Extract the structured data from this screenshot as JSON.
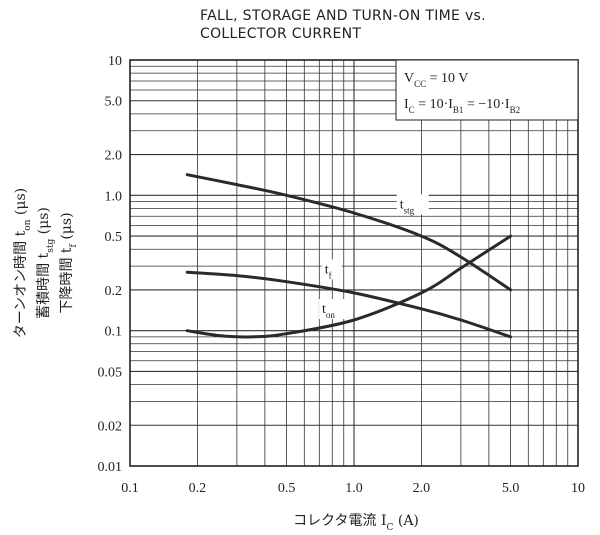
{
  "chart_data": {
    "type": "line",
    "title_lines": [
      "FALL, STORAGE AND TURN-ON TIME vs.",
      "COLLECTOR CURRENT"
    ],
    "xscale": "log",
    "yscale": "log",
    "xlim": [
      0.1,
      10
    ],
    "ylim": [
      0.01,
      10
    ],
    "grid": true,
    "x_ticks": [
      {
        "value": 0.1,
        "label": "0.1"
      },
      {
        "value": 0.2,
        "label": "0.2"
      },
      {
        "value": 0.5,
        "label": "0.5"
      },
      {
        "value": 1,
        "label": "1.0"
      },
      {
        "value": 2,
        "label": "2.0"
      },
      {
        "value": 5,
        "label": "5.0"
      },
      {
        "value": 10,
        "label": "10"
      }
    ],
    "y_ticks": [
      {
        "value": 10,
        "label": "10"
      },
      {
        "value": 5,
        "label": "5.0"
      },
      {
        "value": 2,
        "label": "2.0"
      },
      {
        "value": 1,
        "label": "1.0"
      },
      {
        "value": 0.5,
        "label": "0.5"
      },
      {
        "value": 0.2,
        "label": "0.2"
      },
      {
        "value": 0.1,
        "label": "0.1"
      },
      {
        "value": 0.05,
        "label": "0.05"
      },
      {
        "value": 0.02,
        "label": "0.02"
      },
      {
        "value": 0.01,
        "label": "0.01"
      }
    ],
    "xlabel": {
      "text": "コレクタ電流",
      "symbol": "I",
      "sub": "C",
      "unit": "(A)"
    },
    "ylabel": [
      {
        "jp": "ターンオン時間",
        "symbol": "t",
        "sub": "on",
        "unit": "(μs)"
      },
      {
        "jp": "蓄積時間",
        "symbol": "t",
        "sub": "stg",
        "unit": "(μs)"
      },
      {
        "jp": "下降時間",
        "symbol": "t",
        "sub": "f",
        "unit": "(μs)"
      }
    ],
    "legend": {
      "position": "top-right",
      "lines": [
        {
          "parts": [
            {
              "t": "V"
            },
            {
              "t": "CC",
              "sub": true
            },
            {
              "t": " = 10 V"
            }
          ]
        },
        {
          "parts": [
            {
              "t": "I"
            },
            {
              "t": "C",
              "sub": true
            },
            {
              "t": " = 10·I"
            },
            {
              "t": "B1",
              "sub": true
            },
            {
              "t": " = −10·I"
            },
            {
              "t": "B2",
              "sub": true
            }
          ]
        }
      ]
    },
    "series": [
      {
        "name": "t_stg",
        "label_main": "t",
        "label_sub": "stg",
        "label_at": [
          1.6,
          0.8
        ],
        "points": [
          [
            0.18,
            1.42
          ],
          [
            0.3,
            1.2
          ],
          [
            0.5,
            1.0
          ],
          [
            1.0,
            0.74
          ],
          [
            2.0,
            0.5
          ],
          [
            3.0,
            0.35
          ],
          [
            5.0,
            0.2
          ]
        ]
      },
      {
        "name": "t_f",
        "label_main": "t",
        "label_sub": "f",
        "label_at": [
          0.74,
          0.265
        ],
        "points": [
          [
            0.18,
            0.27
          ],
          [
            0.3,
            0.255
          ],
          [
            0.5,
            0.23
          ],
          [
            1.0,
            0.19
          ],
          [
            2.0,
            0.145
          ],
          [
            3.0,
            0.12
          ],
          [
            5.0,
            0.09
          ]
        ]
      },
      {
        "name": "t_on",
        "label_main": "t",
        "label_sub": "on",
        "label_at": [
          0.72,
          0.135
        ],
        "points": [
          [
            0.18,
            0.1
          ],
          [
            0.25,
            0.092
          ],
          [
            0.35,
            0.09
          ],
          [
            0.5,
            0.095
          ],
          [
            1.0,
            0.12
          ],
          [
            2.0,
            0.19
          ],
          [
            3.0,
            0.29
          ],
          [
            5.0,
            0.5
          ]
        ]
      }
    ],
    "colors": {
      "grid": "#333333",
      "curve": "#2a2a2a",
      "text": "#222222"
    }
  }
}
